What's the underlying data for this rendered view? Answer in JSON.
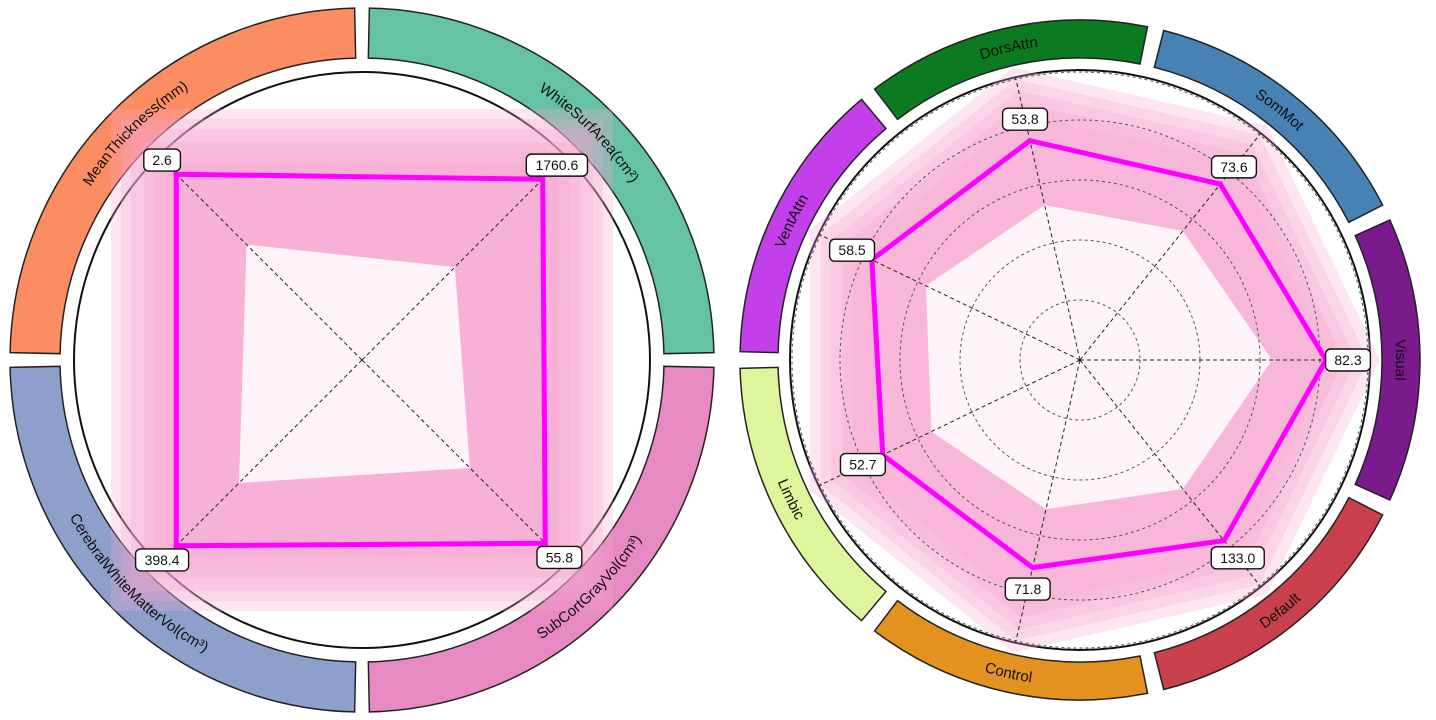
{
  "chart_data": [
    {
      "type": "radar",
      "axes": [
        {
          "name": "WhiteSurfArea(cm²)",
          "value": 1760.6,
          "value_label": "1760.6"
        },
        {
          "name": "SubCortGrayVol(cm³)",
          "value": 55.8,
          "value_label": "55.8"
        },
        {
          "name": "CerebralWhiteMatterVol(cm³)",
          "value": 398.4,
          "value_label": "398.4"
        },
        {
          "name": "MeanThickness(mm)",
          "value": 2.6,
          "value_label": "2.6"
        }
      ],
      "normalized_values": [
        0.72,
        0.73,
        0.74,
        0.74
      ],
      "band_levels": [
        0.78,
        0.83,
        0.87,
        0.92,
        0.96,
        1.0
      ],
      "grid": false,
      "colors": {
        "line": "#ff00ff",
        "band": "#f7a6d2",
        "segments": [
          "#66c2a5",
          "#e78ac3",
          "#8da0cb",
          "#fc8d62"
        ]
      }
    },
    {
      "type": "radar",
      "axes": [
        {
          "name": "SomMot",
          "value": 73.6,
          "value_label": "73.6"
        },
        {
          "name": "Visual",
          "value": 82.3,
          "value_label": "82.3"
        },
        {
          "name": "Default",
          "value": 133.0,
          "value_label": "133.0"
        },
        {
          "name": "Control",
          "value": 71.8,
          "value_label": "71.8"
        },
        {
          "name": "Limbic",
          "value": 52.7,
          "value_label": "52.7"
        },
        {
          "name": "VentAttn",
          "value": 58.5,
          "value_label": "58.5"
        },
        {
          "name": "DorsAttn",
          "value": 53.8,
          "value_label": "53.8"
        }
      ],
      "normalized_values": [
        0.75,
        0.82,
        0.77,
        0.71,
        0.73,
        0.77,
        0.75
      ],
      "band_levels": [
        0.84,
        0.88,
        0.92,
        0.96,
        1.0
      ],
      "grid": true,
      "colors": {
        "line": "#ff00ff",
        "band": "#f7a6d2",
        "segments": [
          "#4682b4",
          "#7b1a8c",
          "#c8404b",
          "#e3921f",
          "#dff59b",
          "#c23fe9",
          "#0b7a20"
        ]
      }
    }
  ]
}
